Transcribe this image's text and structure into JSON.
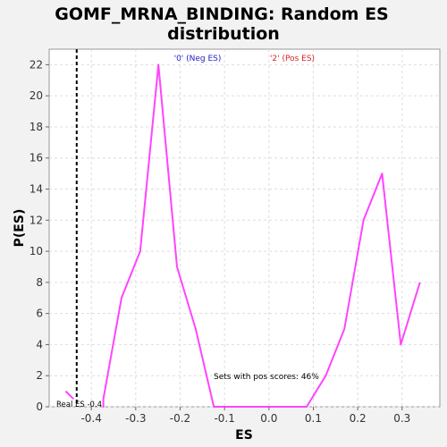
{
  "chart_data": {
    "type": "line",
    "title_lines": [
      "GOMF_MRNA_BINDING: Random ES",
      "distribution"
    ],
    "xlabel": "ES",
    "ylabel": "P(ES)",
    "xlim": [
      -0.495,
      0.385
    ],
    "ylim": [
      0,
      23
    ],
    "x_ticks": [
      -0.4,
      -0.3,
      -0.2,
      -0.1,
      0.0,
      0.1,
      0.2,
      0.3
    ],
    "x_tick_labels": [
      "-0.4",
      "-0.3",
      "-0.2",
      "-0.1",
      "0.0",
      "0.1",
      "0.2",
      "0.3"
    ],
    "y_ticks": [
      0,
      2,
      4,
      6,
      8,
      10,
      12,
      14,
      16,
      18,
      20,
      22
    ],
    "y_tick_labels": [
      "0",
      "2",
      "4",
      "6",
      "8",
      "10",
      "12",
      "14",
      "16",
      "18",
      "20",
      "22"
    ],
    "grid": true,
    "series": [
      {
        "color": "#ff44ff",
        "segments": [
          [
            [
              -0.458,
              1.0
            ],
            [
              -0.44,
              0.5
            ]
          ],
          [
            [
              -0.373,
              0.5
            ],
            [
              -0.373,
              0.0
            ],
            [
              -0.373,
              0.5
            ],
            [
              -0.332,
              7.0
            ],
            [
              -0.29,
              10.0
            ],
            [
              -0.249,
              22.0
            ],
            [
              -0.207,
              9.0
            ],
            [
              -0.165,
              5.0
            ],
            [
              -0.124,
              0.0
            ],
            [
              -0.04,
              0.0
            ],
            [
              0.002,
              0.0
            ],
            [
              0.044,
              0.0
            ],
            [
              0.085,
              0.0
            ],
            [
              0.128,
              2.0
            ],
            [
              0.17,
              5.0
            ],
            [
              0.213,
              12.0
            ],
            [
              0.255,
              15.0
            ],
            [
              0.297,
              4.0
            ],
            [
              0.34,
              8.0
            ]
          ]
        ]
      }
    ],
    "real_es": {
      "value": -0.433,
      "label": "Real ES -0.4"
    },
    "legend": [
      {
        "text": "'0' (Neg ES)",
        "color": "#2222cc"
      },
      {
        "text": "'2' (Pos ES)",
        "color": "#dd2222"
      }
    ],
    "annotation": "Sets with pos scores: 46%"
  }
}
